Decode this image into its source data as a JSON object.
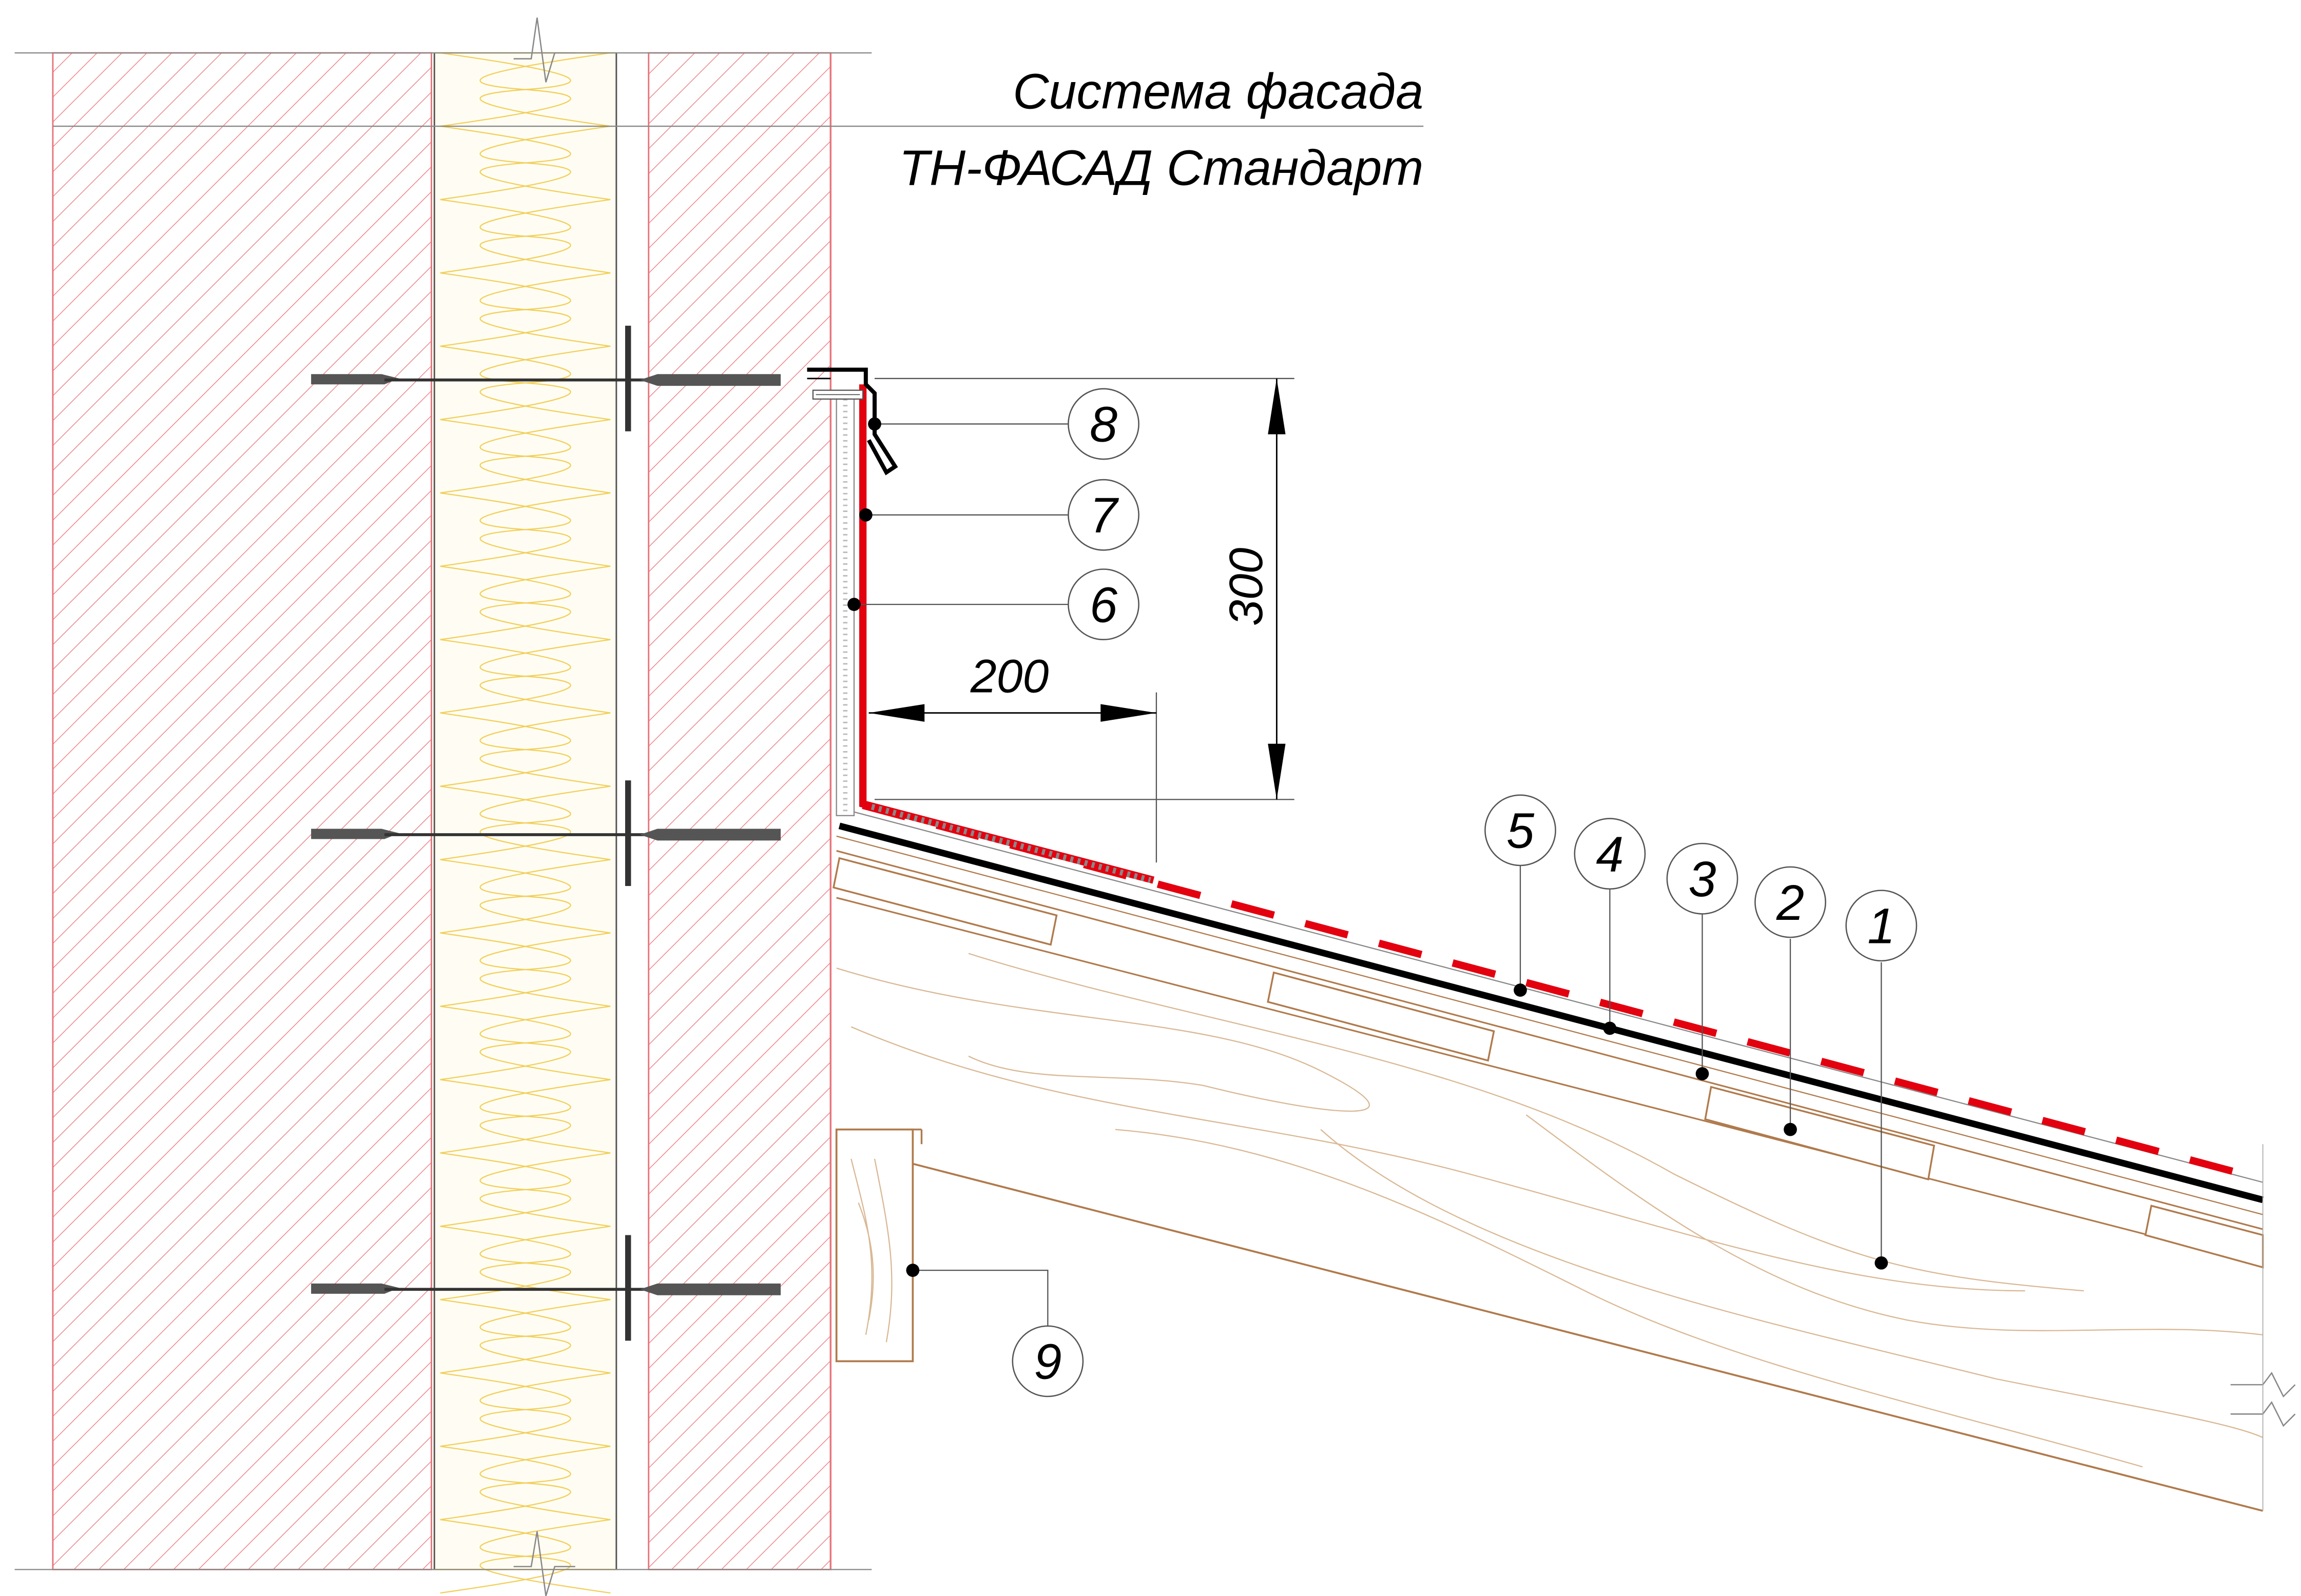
{
  "title": {
    "line1": "Система фасада",
    "line2": "ТН-ФАСАД Стандарт"
  },
  "dimensions": {
    "vertical": "300",
    "horizontal": "200"
  },
  "callouts": [
    {
      "id": "1",
      "label": "1"
    },
    {
      "id": "2",
      "label": "2"
    },
    {
      "id": "3",
      "label": "3"
    },
    {
      "id": "4",
      "label": "4"
    },
    {
      "id": "5",
      "label": "5"
    },
    {
      "id": "6",
      "label": "6"
    },
    {
      "id": "7",
      "label": "7"
    },
    {
      "id": "8",
      "label": "8"
    },
    {
      "id": "9",
      "label": "9"
    }
  ],
  "colors": {
    "brick_hatch": "#e8747a",
    "insulation": "#f2cf5a",
    "membrane": "#e3000f",
    "wood": "#b07a4c",
    "line": "#000000",
    "anchor": "#555555"
  }
}
